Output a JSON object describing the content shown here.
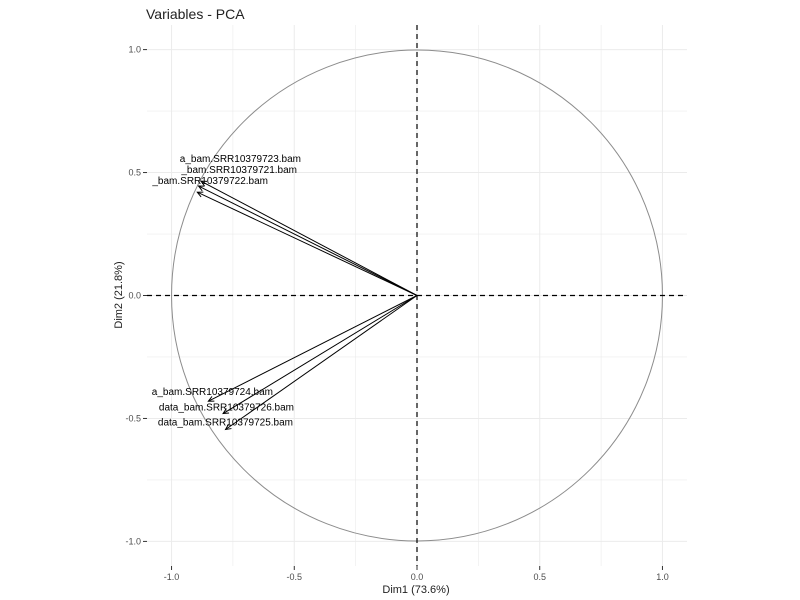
{
  "chart_data": {
    "type": "scatter",
    "title": "Variables - PCA",
    "xlabel": "Dim1 (73.6%)",
    "ylabel": "Dim2 (21.8%)",
    "xlim": [
      -1.1,
      1.1
    ],
    "ylim": [
      -1.1,
      1.1
    ],
    "x_ticks": [
      -1.0,
      -0.5,
      0.0,
      0.5,
      1.0
    ],
    "y_ticks": [
      -1.0,
      -0.5,
      0.0,
      0.5,
      1.0
    ],
    "x_tick_labels": [
      "-1.0",
      "-0.5",
      "0.0",
      "0.5",
      "1.0"
    ],
    "y_tick_labels": [
      "-1.0",
      "-0.5",
      "0.0",
      "0.5",
      "1.0"
    ],
    "grid": true,
    "correlation_circle": true,
    "reference_lines": {
      "x": 0,
      "y": 0,
      "style": "dashed"
    },
    "colors": {
      "arrows": "#000000",
      "circle": "#8c8c8c",
      "grid": "#ebebeb"
    },
    "variables": [
      {
        "name": "a_bam.SRR10379723.bam",
        "x": -0.88,
        "y": 0.465
      },
      {
        "name": "_bam.SRR10379721.bam",
        "x": -0.89,
        "y": 0.445
      },
      {
        "name": "_bam.SRR10379722.bam",
        "x": -0.895,
        "y": 0.42
      },
      {
        "name": "a_bam.SRR10379724.bam",
        "x": -0.85,
        "y": -0.43
      },
      {
        "name": "data_bam.SRR10379726.bam",
        "x": -0.79,
        "y": -0.48
      },
      {
        "name": "data_bam.SRR10379725.bam",
        "x": -0.78,
        "y": -0.545
      }
    ]
  }
}
